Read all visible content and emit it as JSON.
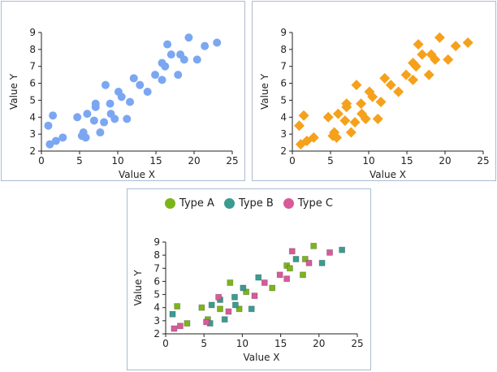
{
  "chart_data": [
    {
      "type": "scatter",
      "marker": "circle",
      "color": "#7ba7f2",
      "xlabel": "Value X",
      "ylabel": "Value Y",
      "xlim": [
        0,
        25
      ],
      "ylim": [
        2,
        9
      ],
      "xticks": [
        "0",
        "5",
        "10",
        "15",
        "20",
        "25"
      ],
      "yticks": [
        "2",
        "3",
        "4",
        "5",
        "6",
        "7",
        "8",
        "9"
      ],
      "points": [
        [
          0.9,
          3.5
        ],
        [
          1.1,
          2.4
        ],
        [
          1.5,
          4.1
        ],
        [
          1.9,
          2.6
        ],
        [
          2.8,
          2.8
        ],
        [
          4.7,
          4.0
        ],
        [
          5.3,
          2.9
        ],
        [
          5.5,
          3.1
        ],
        [
          5.8,
          2.8
        ],
        [
          6.0,
          4.2
        ],
        [
          6.9,
          3.8
        ],
        [
          7.1,
          4.6
        ],
        [
          7.1,
          4.8
        ],
        [
          7.7,
          3.1
        ],
        [
          8.2,
          3.7
        ],
        [
          8.4,
          5.9
        ],
        [
          9.0,
          4.8
        ],
        [
          9.1,
          4.2
        ],
        [
          9.6,
          3.9
        ],
        [
          10.1,
          5.5
        ],
        [
          10.5,
          5.2
        ],
        [
          11.2,
          3.9
        ],
        [
          11.6,
          4.9
        ],
        [
          12.1,
          6.3
        ],
        [
          12.9,
          5.9
        ],
        [
          13.9,
          5.5
        ],
        [
          14.9,
          6.5
        ],
        [
          15.8,
          6.2
        ],
        [
          15.8,
          7.2
        ],
        [
          16.2,
          7.0
        ],
        [
          16.5,
          8.3
        ],
        [
          17.0,
          7.7
        ],
        [
          17.9,
          6.5
        ],
        [
          18.2,
          7.7
        ],
        [
          18.7,
          7.4
        ],
        [
          19.3,
          8.7
        ],
        [
          20.4,
          7.4
        ],
        [
          21.4,
          8.2
        ],
        [
          23.0,
          8.4
        ]
      ]
    },
    {
      "type": "scatter",
      "marker": "diamond",
      "color": "#f5a11c",
      "xlabel": "Value X",
      "ylabel": "Value Y",
      "xlim": [
        0,
        25
      ],
      "ylim": [
        2,
        9
      ],
      "xticks": [
        "0",
        "5",
        "10",
        "15",
        "20",
        "25"
      ],
      "yticks": [
        "2",
        "3",
        "4",
        "5",
        "6",
        "7",
        "8",
        "9"
      ],
      "points": [
        [
          0.9,
          3.5
        ],
        [
          1.1,
          2.4
        ],
        [
          1.5,
          4.1
        ],
        [
          1.9,
          2.6
        ],
        [
          2.8,
          2.8
        ],
        [
          4.7,
          4.0
        ],
        [
          5.3,
          2.9
        ],
        [
          5.5,
          3.1
        ],
        [
          5.8,
          2.8
        ],
        [
          6.0,
          4.2
        ],
        [
          6.9,
          3.8
        ],
        [
          7.1,
          4.6
        ],
        [
          7.1,
          4.8
        ],
        [
          7.7,
          3.1
        ],
        [
          8.2,
          3.7
        ],
        [
          8.4,
          5.9
        ],
        [
          9.0,
          4.8
        ],
        [
          9.1,
          4.2
        ],
        [
          9.6,
          3.9
        ],
        [
          10.1,
          5.5
        ],
        [
          10.5,
          5.2
        ],
        [
          11.2,
          3.9
        ],
        [
          11.6,
          4.9
        ],
        [
          12.1,
          6.3
        ],
        [
          12.9,
          5.9
        ],
        [
          13.9,
          5.5
        ],
        [
          14.9,
          6.5
        ],
        [
          15.8,
          6.2
        ],
        [
          15.8,
          7.2
        ],
        [
          16.2,
          7.0
        ],
        [
          16.5,
          8.3
        ],
        [
          17.0,
          7.7
        ],
        [
          17.9,
          6.5
        ],
        [
          18.2,
          7.7
        ],
        [
          18.7,
          7.4
        ],
        [
          19.3,
          8.7
        ],
        [
          20.4,
          7.4
        ],
        [
          21.4,
          8.2
        ],
        [
          23.0,
          8.4
        ]
      ]
    },
    {
      "type": "scatter",
      "marker": "square",
      "xlabel": "Value X",
      "ylabel": "Value Y",
      "xlim": [
        0,
        25
      ],
      "ylim": [
        2,
        9
      ],
      "xticks": [
        "0",
        "5",
        "10",
        "15",
        "20",
        "25"
      ],
      "yticks": [
        "2",
        "3",
        "4",
        "5",
        "6",
        "7",
        "8",
        "9"
      ],
      "legend_position": "top",
      "series": [
        {
          "name": "Type A",
          "color": "#7cb518",
          "points": [
            [
              1.5,
              4.1
            ],
            [
              2.8,
              2.8
            ],
            [
              4.7,
              4.0
            ],
            [
              5.5,
              3.1
            ],
            [
              7.1,
              3.9
            ],
            [
              8.4,
              5.9
            ],
            [
              9.6,
              3.9
            ],
            [
              10.5,
              5.2
            ],
            [
              13.9,
              5.5
            ],
            [
              15.8,
              7.2
            ],
            [
              16.2,
              7.0
            ],
            [
              17.9,
              6.5
            ],
            [
              18.2,
              7.7
            ],
            [
              19.3,
              8.7
            ]
          ]
        },
        {
          "name": "Type B",
          "color": "#3a9c90",
          "points": [
            [
              0.9,
              3.5
            ],
            [
              6.0,
              4.2
            ],
            [
              5.8,
              2.8
            ],
            [
              7.1,
              4.6
            ],
            [
              7.7,
              3.1
            ],
            [
              9.0,
              4.8
            ],
            [
              9.1,
              4.2
            ],
            [
              10.1,
              5.5
            ],
            [
              11.2,
              3.9
            ],
            [
              12.1,
              6.3
            ],
            [
              17.0,
              7.7
            ],
            [
              20.4,
              7.4
            ],
            [
              23.0,
              8.4
            ]
          ]
        },
        {
          "name": "Type C",
          "color": "#d85a9a",
          "points": [
            [
              1.1,
              2.4
            ],
            [
              1.9,
              2.6
            ],
            [
              5.3,
              2.9
            ],
            [
              6.9,
              4.8
            ],
            [
              8.2,
              3.7
            ],
            [
              11.6,
              4.9
            ],
            [
              12.9,
              5.9
            ],
            [
              14.9,
              6.5
            ],
            [
              15.8,
              6.2
            ],
            [
              16.5,
              8.3
            ],
            [
              18.7,
              7.4
            ],
            [
              21.4,
              8.2
            ]
          ]
        }
      ]
    }
  ]
}
